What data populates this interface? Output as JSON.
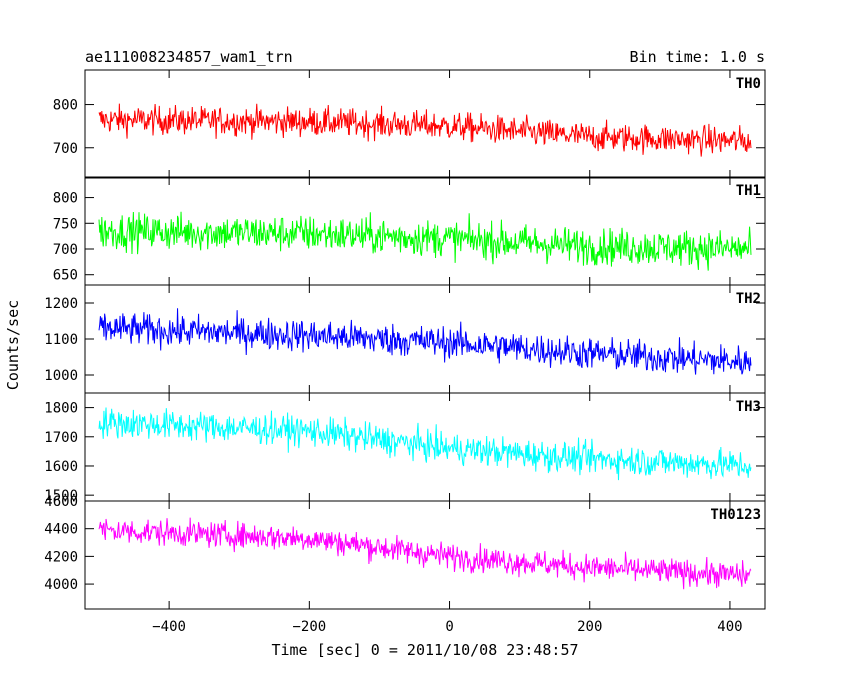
{
  "header": {
    "left_title": "ae111008234857_wam1_trn",
    "right_title": "Bin time: 1.0 s"
  },
  "chart_data": {
    "type": "line",
    "title": "ae111008234857_wam1_trn",
    "subtitle": "Bin time: 1.0 s",
    "xlabel": "Time [sec] 0 = 2011/10/08 23:48:57",
    "ylabel": "Counts/sec",
    "xlim": [
      -520,
      450
    ],
    "x_range": [
      -500,
      430
    ],
    "bin_time": 1.0,
    "xticks": [
      -400,
      -200,
      0,
      200,
      400
    ],
    "grid": false,
    "series": [
      {
        "name": "TH0",
        "color": "#ff0000",
        "ylim": [
          630,
          880
        ],
        "yticks": [
          700,
          800
        ],
        "trend": [
          [
            -500,
            765
          ],
          [
            -200,
            760
          ],
          [
            0,
            750
          ],
          [
            200,
            725
          ],
          [
            430,
            715
          ]
        ],
        "noise_amplitude": 70
      },
      {
        "name": "TH1",
        "color": "#00ff00",
        "ylim": [
          630,
          840
        ],
        "yticks": [
          650,
          700,
          750,
          800
        ],
        "trend": [
          [
            -500,
            735
          ],
          [
            -200,
            730
          ],
          [
            0,
            720
          ],
          [
            200,
            705
          ],
          [
            430,
            700
          ]
        ],
        "noise_amplitude": 75
      },
      {
        "name": "TH2",
        "color": "#0000ff",
        "ylim": [
          950,
          1250
        ],
        "yticks": [
          1000,
          1100,
          1200
        ],
        "trend": [
          [
            -500,
            1130
          ],
          [
            -200,
            1110
          ],
          [
            0,
            1090
          ],
          [
            200,
            1060
          ],
          [
            430,
            1035
          ]
        ],
        "noise_amplitude": 95
      },
      {
        "name": "TH3",
        "color": "#00ffff",
        "ylim": [
          1480,
          1850
        ],
        "yticks": [
          1500,
          1600,
          1700,
          1800
        ],
        "trend": [
          [
            -500,
            1750
          ],
          [
            -200,
            1720
          ],
          [
            0,
            1660
          ],
          [
            200,
            1625
          ],
          [
            430,
            1600
          ]
        ],
        "noise_amplitude": 110
      },
      {
        "name": "TH0123",
        "color": "#ff00ff",
        "ylim": [
          3820,
          4600
        ],
        "yticks": [
          4000,
          4200,
          4400,
          4600
        ],
        "trend": [
          [
            -500,
            4390
          ],
          [
            -200,
            4330
          ],
          [
            0,
            4200
          ],
          [
            200,
            4120
          ],
          [
            430,
            4060
          ]
        ],
        "noise_amplitude": 200
      }
    ]
  }
}
